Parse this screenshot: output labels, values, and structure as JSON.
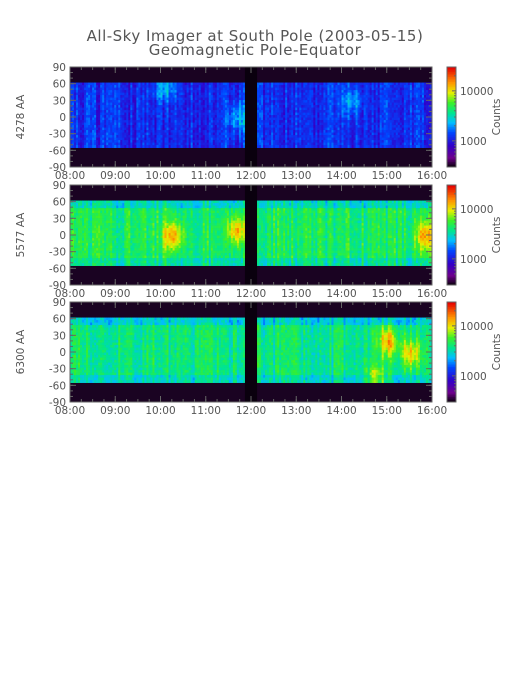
{
  "chart_data": {
    "type": "heatmap",
    "title": "All-Sky Imager at South Pole (2003-05-15)",
    "subtitle": "Geomagnetic Pole-Equator",
    "x_ticks": [
      "08:00",
      "09:00",
      "10:00",
      "11:00",
      "12:00",
      "13:00",
      "14:00",
      "15:00",
      "16:00"
    ],
    "xlim": [
      "08:00",
      "16:00"
    ],
    "ylim": [
      -90,
      90
    ],
    "y_ticks": [
      90,
      60,
      30,
      0,
      -30,
      -60,
      -90
    ],
    "colorbar": {
      "label": "Counts",
      "scale": "log",
      "ticks": [
        10000,
        1000
      ],
      "tick_labels": [
        "10000",
        "1000"
      ],
      "range": [
        300,
        30000
      ]
    },
    "data_gaps": [
      [
        "11:52",
        "12:08"
      ]
    ],
    "valid_y_range": [
      -55,
      62
    ],
    "panels": [
      {
        "ylabel": "4278 AA",
        "level_counts": 1200,
        "hot_regions": [
          {
            "time": "10:05",
            "y": 55,
            "counts": 2500
          },
          {
            "time": "11:43",
            "y": 0,
            "counts": 2500
          },
          {
            "time": "14:12",
            "y": 30,
            "counts": 2200
          }
        ]
      },
      {
        "ylabel": "5577 AA",
        "level_counts": 4500,
        "hot_regions": [
          {
            "time": "10:15",
            "y": 0,
            "counts": 15000
          },
          {
            "time": "11:40",
            "y": 10,
            "counts": 14000
          },
          {
            "time": "15:50",
            "y": 0,
            "counts": 14000
          }
        ]
      },
      {
        "ylabel": "6300 AA",
        "level_counts": 4000,
        "hot_regions": [
          {
            "time": "15:00",
            "y": 20,
            "counts": 14000
          },
          {
            "time": "15:30",
            "y": 0,
            "counts": 12000
          },
          {
            "time": "14:45",
            "y": -45,
            "counts": 9000
          }
        ]
      }
    ]
  },
  "colors": {
    "axis": "#666666",
    "text": "#555555",
    "gap": "#0a000e",
    "no_data": "#1a0322"
  }
}
